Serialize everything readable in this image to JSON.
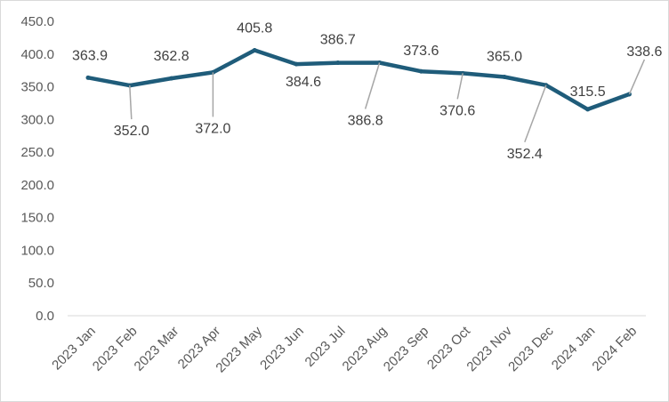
{
  "chart_data": {
    "type": "line",
    "categories": [
      "2023 Jan",
      "2023 Feb",
      "2023 Mar",
      "2023 Apr",
      "2023 May",
      "2023 Jun",
      "2023 Jul",
      "2023 Aug",
      "2023 Sep",
      "2023 Oct",
      "2023 Nov",
      "2023 Dec",
      "2024 Jan",
      "2024 Feb"
    ],
    "series": [
      {
        "values": [
          363.9,
          352.0,
          362.8,
          372.0,
          405.8,
          384.6,
          386.7,
          386.8,
          373.6,
          370.6,
          365.0,
          352.4,
          315.5,
          338.6
        ],
        "data_labels": [
          "363.9",
          "352.0",
          "362.8",
          "372.0",
          "405.8",
          "384.6",
          "386.7",
          "386.8",
          "373.6",
          "370.6",
          "365.0",
          "352.4",
          "315.5",
          "338.6"
        ],
        "color": "#1f5c7a"
      }
    ],
    "y_ticks": [
      "0.0",
      "50.0",
      "100.0",
      "150.0",
      "200.0",
      "250.0",
      "300.0",
      "350.0",
      "400.0",
      "450.0"
    ],
    "ylim": [
      0,
      450
    ],
    "grid": false,
    "legend": "none",
    "title": "",
    "xlabel": "",
    "ylabel": "",
    "axis_color": "#d9d9d9",
    "leader_line_color": "#a6a6a6"
  }
}
